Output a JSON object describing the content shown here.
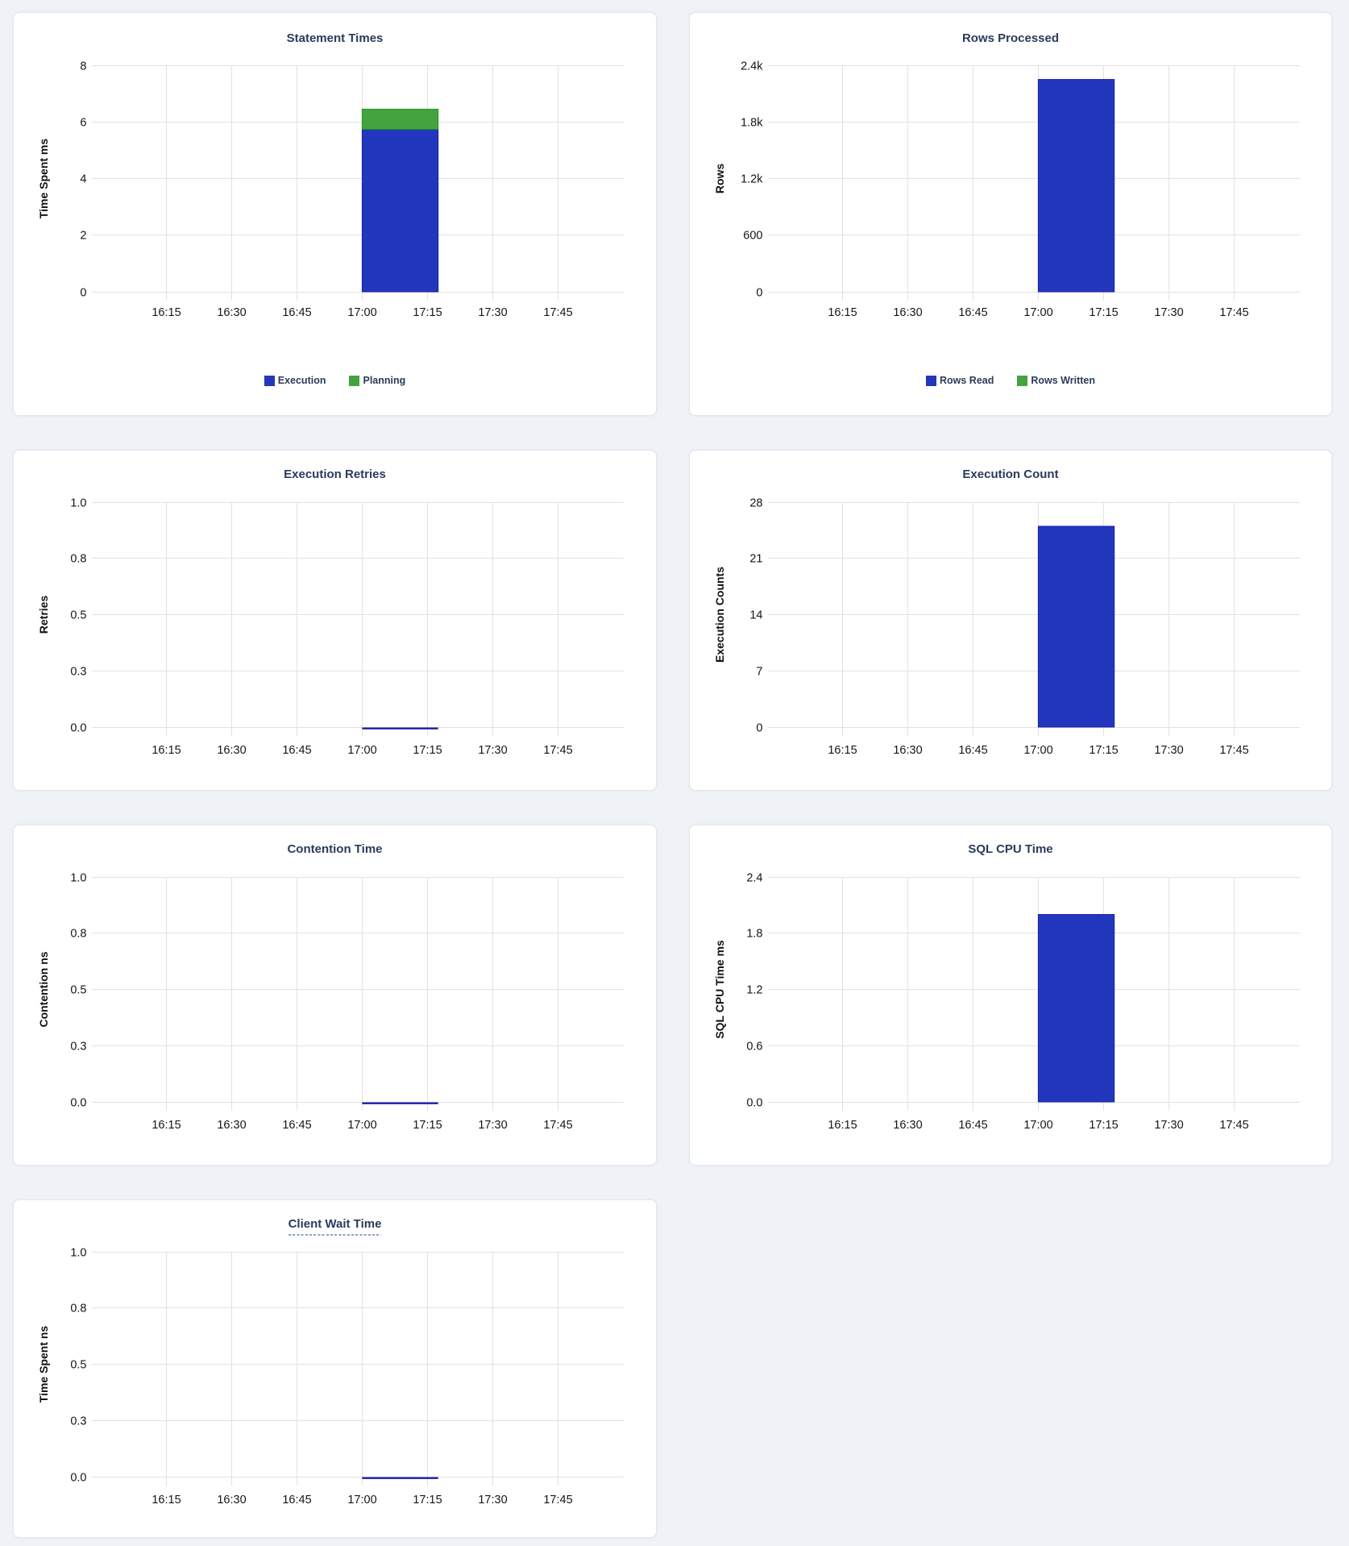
{
  "page": {
    "background_color": "#EFF3F8",
    "card_background_color": "#FFFFFF",
    "grid_line_color": "#E2E2E2",
    "axis_text_color": "#141618",
    "title_color": "#2A3B5A",
    "series_blue": "#2337BE",
    "series_blue_stroke": "#1B23A6",
    "series_green": "#44A33F",
    "series_green_stroke": "#1E9B16"
  },
  "x_axis_tick_labels": [
    "16:15",
    "16:30",
    "16:45",
    "17:00",
    "17:15",
    "17:30",
    "17:45"
  ],
  "bar_time_window_start": "17:00",
  "chart_data": [
    {
      "id": "statement-times",
      "type": "bar",
      "stacked": true,
      "title": "Statement Times",
      "ylabel": "Time Spent ms",
      "ylim": [
        0,
        8
      ],
      "y_tick_labels": [
        "8",
        "6",
        "4",
        "2",
        "0"
      ],
      "x": "17:00",
      "legend_visible": true,
      "series": [
        {
          "name": "Execution",
          "value": 5.74,
          "color": "#2337BE",
          "stroke": "#1B23A6"
        },
        {
          "name": "Planning",
          "value": 0.71,
          "color": "#44A33F",
          "stroke": "#1E9B16"
        }
      ]
    },
    {
      "id": "rows-processed",
      "type": "bar",
      "stacked": true,
      "title": "Rows Processed",
      "ylabel": "Rows",
      "ylim": [
        0,
        2400
      ],
      "y_tick_labels": [
        "2.4k",
        "1.8k",
        "1.2k",
        "600",
        "0"
      ],
      "x": "17:00",
      "legend_visible": true,
      "series": [
        {
          "name": "Rows Read",
          "value": 2250,
          "color": "#2337BE",
          "stroke": "#1B23A6"
        },
        {
          "name": "Rows Written",
          "value": 0,
          "color": "#44A33F",
          "stroke": "#1E9B16"
        }
      ]
    },
    {
      "id": "execution-retries",
      "type": "bar",
      "stacked": false,
      "title": "Execution Retries",
      "ylabel": "Retries",
      "ylim": [
        0,
        1
      ],
      "y_tick_labels": [
        "1.0",
        "0.8",
        "0.5",
        "0.3",
        "0.0"
      ],
      "x": "17:00",
      "legend_visible": false,
      "series": [
        {
          "name": "Retries",
          "value": 0,
          "color": "#2337BE",
          "stroke": "#1B23A6"
        }
      ]
    },
    {
      "id": "execution-count",
      "type": "bar",
      "stacked": false,
      "title": "Execution Count",
      "ylabel": "Execution Counts",
      "ylim": [
        0,
        28
      ],
      "y_tick_labels": [
        "28",
        "21",
        "14",
        "7",
        "0"
      ],
      "x": "17:00",
      "legend_visible": false,
      "series": [
        {
          "name": "Execution Count",
          "value": 25,
          "color": "#2337BE",
          "stroke": "#1B23A6"
        }
      ]
    },
    {
      "id": "contention-time",
      "type": "bar",
      "stacked": false,
      "title": "Contention Time",
      "ylabel": "Contention ns",
      "ylim": [
        0,
        1
      ],
      "y_tick_labels": [
        "1.0",
        "0.8",
        "0.5",
        "0.3",
        "0.0"
      ],
      "x": "17:00",
      "legend_visible": false,
      "series": [
        {
          "name": "Contention",
          "value": 0,
          "color": "#2337BE",
          "stroke": "#1B23A6"
        }
      ]
    },
    {
      "id": "sql-cpu-time",
      "type": "bar",
      "stacked": false,
      "title": "SQL CPU Time",
      "ylabel": "SQL CPU Time ms",
      "ylim": [
        0,
        2.4
      ],
      "y_tick_labels": [
        "2.4",
        "1.8",
        "1.2",
        "0.6",
        "0.0"
      ],
      "x": "17:00",
      "legend_visible": false,
      "series": [
        {
          "name": "SQL CPU Time",
          "value": 2.0,
          "color": "#2337BE",
          "stroke": "#1B23A6"
        }
      ]
    },
    {
      "id": "client-wait-time",
      "type": "bar",
      "stacked": false,
      "title": "Client Wait Time",
      "title_underline_dashed": true,
      "ylabel": "Time Spent ns",
      "ylim": [
        0,
        1
      ],
      "y_tick_labels": [
        "1.0",
        "0.8",
        "0.5",
        "0.3",
        "0.0"
      ],
      "x": "17:00",
      "legend_visible": false,
      "series": [
        {
          "name": "Client Wait Time",
          "value": 0,
          "color": "#2337BE",
          "stroke": "#1B23A6"
        }
      ]
    }
  ]
}
